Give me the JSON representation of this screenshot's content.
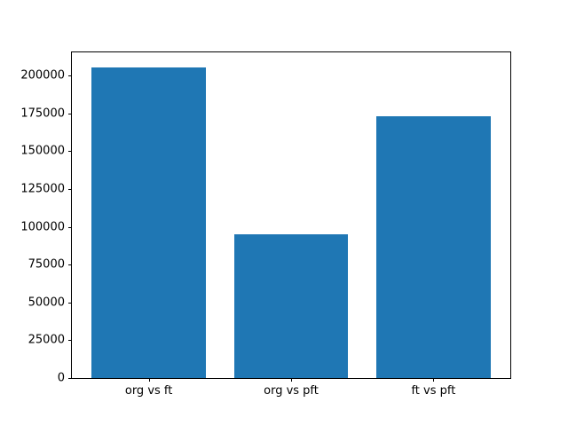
{
  "chart_data": {
    "type": "bar",
    "title": "",
    "xlabel": "",
    "ylabel": "",
    "categories": [
      "org vs ft",
      "org vs pft",
      "ft vs pft"
    ],
    "values": [
      205000,
      95000,
      173000
    ],
    "yticks": [
      0,
      25000,
      50000,
      75000,
      100000,
      125000,
      150000,
      175000,
      200000
    ],
    "ylim": [
      0,
      215250
    ],
    "xlim": [
      -0.54,
      2.54
    ],
    "bar_width": 0.8,
    "bar_color": "#1f77b4",
    "background_color": "#ffffff",
    "spine_color": "#000000",
    "grid": false,
    "legend": false
  }
}
